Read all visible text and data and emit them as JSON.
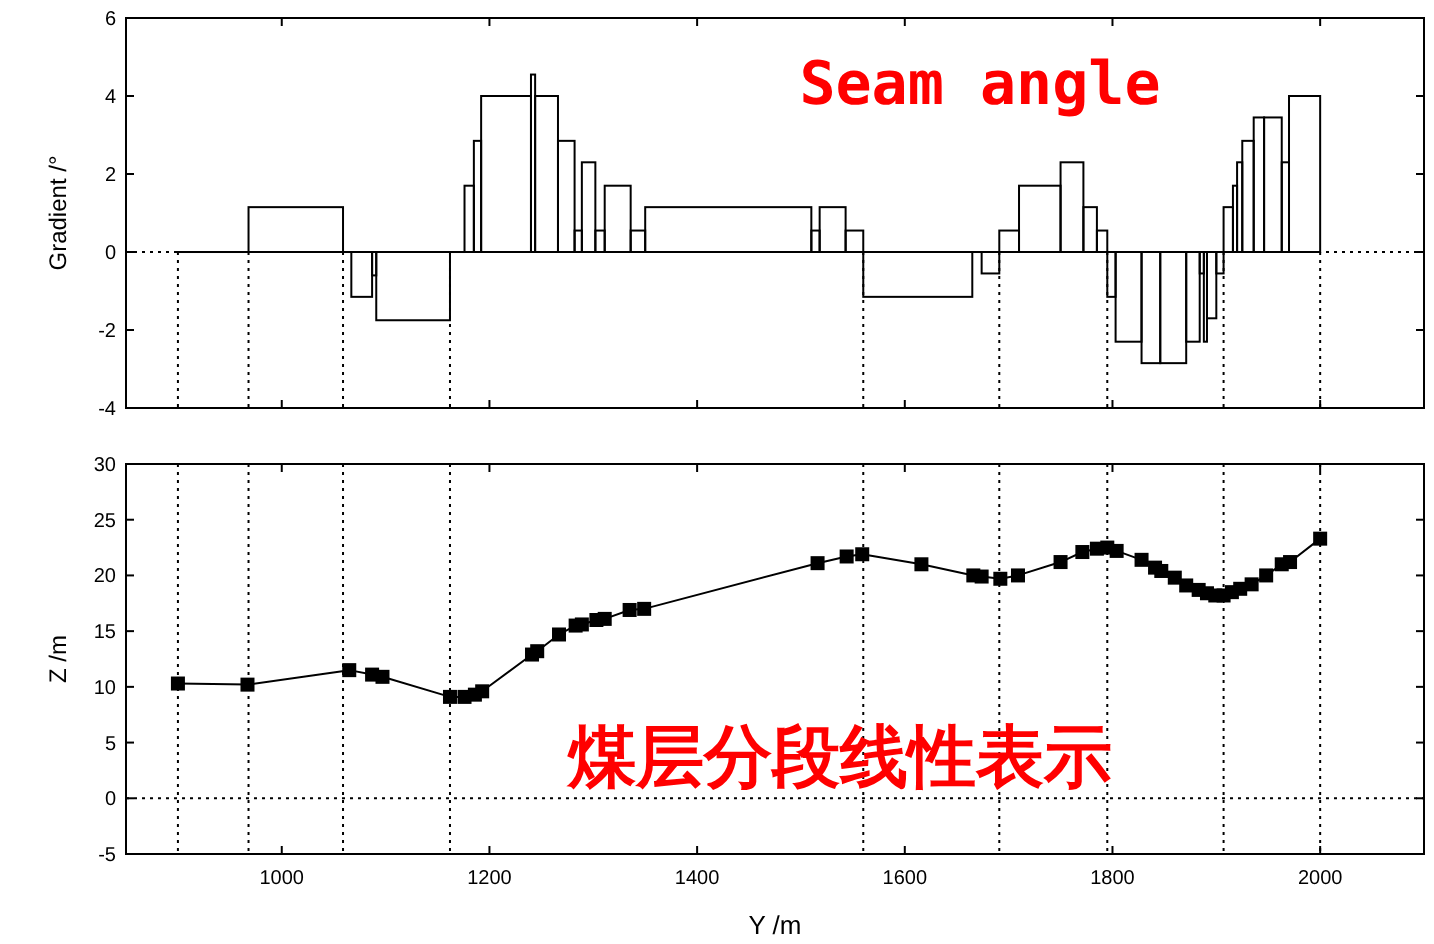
{
  "chart_data": [
    {
      "type": "histogram",
      "ylabel": "Gradient /°",
      "color": "#000000",
      "bins": [
        900,
        968,
        1059,
        1067,
        1087,
        1091,
        1162,
        1176,
        1185,
        1192,
        1240,
        1244,
        1266,
        1282,
        1289,
        1302,
        1311,
        1336,
        1350,
        1510,
        1518,
        1543,
        1560,
        1665,
        1674,
        1691,
        1710,
        1750,
        1772,
        1785,
        1795,
        1803,
        1828,
        1846,
        1871,
        1884,
        1888,
        1891,
        1900,
        1907,
        1916,
        1920,
        1925,
        1936,
        1946,
        1963,
        1970,
        2000
      ],
      "values": [
        0,
        1.15,
        0,
        -1.15,
        -0.6,
        -1.75,
        0,
        1.7,
        2.85,
        4,
        4.55,
        4,
        2.85,
        0.55,
        2.3,
        0.55,
        1.7,
        0.55,
        1.15,
        0.55,
        1.15,
        0.55,
        -1.15,
        0,
        -0.55,
        0.55,
        1.7,
        2.3,
        1.15,
        0.55,
        -1.15,
        -2.3,
        -2.85,
        -2.85,
        -2.3,
        -0.55,
        -2.3,
        -1.7,
        -0.55,
        1.15,
        1.7,
        2.3,
        2.85,
        3.45,
        3.45,
        2.3,
        4
      ],
      "xlim": [
        850,
        2100
      ],
      "xticks": [
        1000,
        1200,
        1400,
        1600,
        1800,
        2000
      ],
      "ylim": [
        -4,
        6
      ],
      "yticks": [
        -4,
        -2,
        0,
        2,
        4,
        6
      ],
      "tick_labels": "y",
      "ref_lines": [
        {
          "axis": "y",
          "value": 0
        },
        {
          "axis": "x",
          "value": 900
        },
        {
          "axis": "x",
          "value": 968
        },
        {
          "axis": "x",
          "value": 1059
        },
        {
          "axis": "x",
          "value": 1162
        },
        {
          "axis": "x",
          "value": 1560
        },
        {
          "axis": "x",
          "value": 1691
        },
        {
          "axis": "x",
          "value": 1795
        },
        {
          "axis": "x",
          "value": 1907
        },
        {
          "axis": "x",
          "value": 2000
        }
      ],
      "annotations": [
        "Seam angle"
      ]
    },
    {
      "type": "line",
      "xlabel": "Y /m",
      "ylabel": "Z /m",
      "marker": "square",
      "color": "#000000",
      "x": [
        900,
        967,
        1065,
        1087,
        1097,
        1162,
        1176,
        1186,
        1193,
        1241,
        1246,
        1267,
        1283,
        1289,
        1303,
        1311,
        1335,
        1349,
        1516,
        1544,
        1559,
        1616,
        1666,
        1674,
        1692,
        1709,
        1750,
        1771,
        1785,
        1795,
        1804,
        1828,
        1841,
        1847,
        1860,
        1871,
        1883,
        1891,
        1899,
        1907,
        1915,
        1923,
        1934,
        1948,
        1963,
        1971,
        2000
      ],
      "values": [
        10.3,
        10.2,
        11.5,
        11.1,
        10.9,
        9.1,
        9.1,
        9.3,
        9.6,
        12.9,
        13.2,
        14.7,
        15.5,
        15.6,
        16.0,
        16.1,
        16.9,
        17.0,
        21.1,
        21.7,
        21.9,
        21.0,
        20.0,
        19.9,
        19.7,
        20.0,
        21.2,
        22.1,
        22.4,
        22.5,
        22.2,
        21.4,
        20.7,
        20.4,
        19.8,
        19.1,
        18.7,
        18.4,
        18.2,
        18.2,
        18.5,
        18.8,
        19.2,
        20.0,
        21.0,
        21.2,
        23.3
      ],
      "xlim": [
        850,
        2100
      ],
      "xticks": [
        1000,
        1200,
        1400,
        1600,
        1800,
        2000
      ],
      "ylim": [
        -5,
        30
      ],
      "yticks": [
        -5,
        0,
        5,
        10,
        15,
        20,
        25,
        30
      ],
      "ref_lines": [
        {
          "axis": "y",
          "value": 0
        },
        {
          "axis": "x",
          "value": 900
        },
        {
          "axis": "x",
          "value": 968
        },
        {
          "axis": "x",
          "value": 1059
        },
        {
          "axis": "x",
          "value": 1162
        },
        {
          "axis": "x",
          "value": 1560
        },
        {
          "axis": "x",
          "value": 1691
        },
        {
          "axis": "x",
          "value": 1795
        },
        {
          "axis": "x",
          "value": 1907
        },
        {
          "axis": "x",
          "value": 2000
        }
      ],
      "annotations": [
        "煤层分段线性表示"
      ]
    }
  ]
}
